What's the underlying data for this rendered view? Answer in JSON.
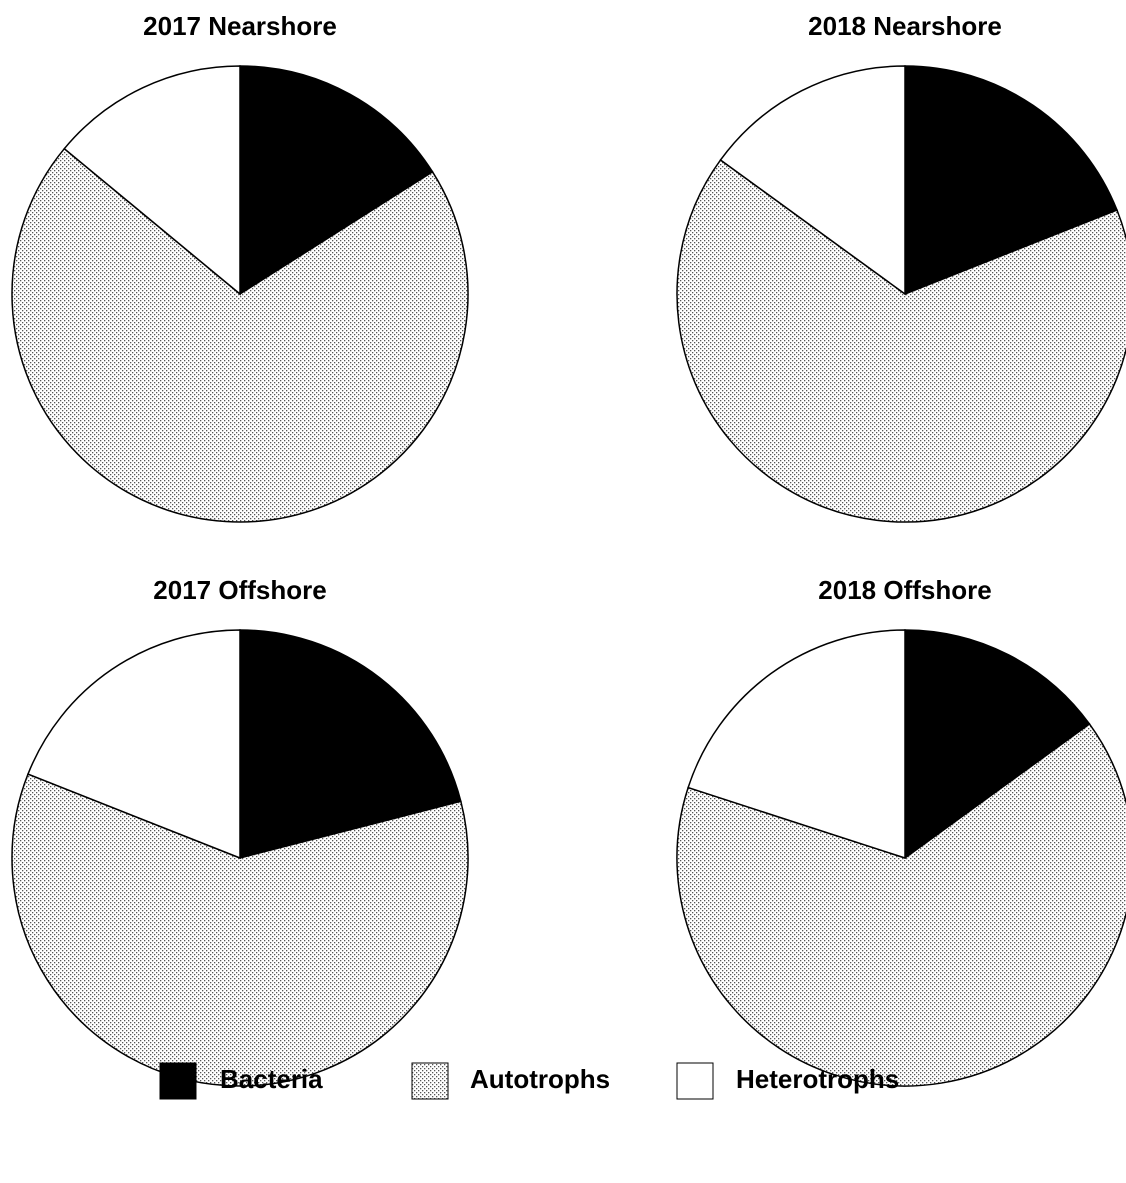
{
  "chart_data": [
    {
      "type": "pie",
      "title": "2017 Nearshore",
      "categories": [
        "Bacteria",
        "Autotrophs",
        "Heterotrophs"
      ],
      "values": [
        16,
        70,
        14
      ],
      "colors": [
        "#000000",
        "#555555",
        "#ffffff"
      ],
      "fill_patterns": [
        "solid",
        "stipple",
        "solid"
      ]
    },
    {
      "type": "pie",
      "title": "2018 Nearshore",
      "categories": [
        "Bacteria",
        "Autotrophs",
        "Heterotrophs"
      ],
      "values": [
        19,
        66,
        15
      ],
      "colors": [
        "#000000",
        "#555555",
        "#ffffff"
      ],
      "fill_patterns": [
        "solid",
        "stipple",
        "solid"
      ]
    },
    {
      "type": "pie",
      "title": "2017 Offshore",
      "categories": [
        "Bacteria",
        "Autotrophs",
        "Heterotrophs"
      ],
      "values": [
        21,
        60,
        19
      ],
      "colors": [
        "#000000",
        "#555555",
        "#ffffff"
      ],
      "fill_patterns": [
        "solid",
        "stipple",
        "solid"
      ]
    },
    {
      "type": "pie",
      "title": "2018 Offshore",
      "categories": [
        "Bacteria",
        "Autotrophs",
        "Heterotrophs"
      ],
      "values": [
        15,
        65,
        20
      ],
      "colors": [
        "#000000",
        "#555555",
        "#ffffff"
      ],
      "fill_patterns": [
        "solid",
        "stipple",
        "solid"
      ]
    }
  ]
}
